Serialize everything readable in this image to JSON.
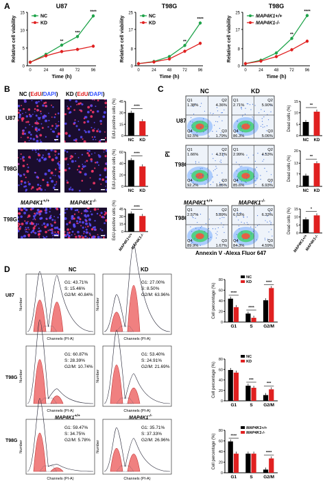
{
  "panels": {
    "A": {
      "letter": "A",
      "xlabel": "Time (h)",
      "ylabel": "Relative cell viability",
      "x_ticks": [
        "0",
        "24",
        "48",
        "72",
        "96"
      ],
      "y_ticks": [
        "0",
        "5",
        "10",
        "15"
      ],
      "charts": [
        {
          "title": "U87",
          "legend": [
            "NC",
            "KD"
          ],
          "sig": [
            "**",
            "***",
            "****"
          ]
        },
        {
          "title": "T98G",
          "legend": [
            "NC",
            "KD"
          ],
          "sig": [
            "**",
            "****"
          ]
        },
        {
          "title": "T98G",
          "legend": [
            "MAP4K1+/+",
            "MAP4K1-/-"
          ],
          "sig": [
            "**",
            "****"
          ]
        }
      ]
    },
    "B": {
      "letter": "B",
      "col_nc": "NC",
      "col_kd": "KD",
      "col_edu": "EdU",
      "col_dapi": "DAPI",
      "row_labels": [
        "U87",
        "T98G",
        "T98G"
      ],
      "mouse_labels": [
        "MAP4K1",
        "MAP4K1"
      ],
      "ylabel": "EdU-positive cells (%)",
      "bar_cats_1": [
        "NC",
        "KD"
      ],
      "bar_cats_3": [
        "MAP4K1+/+",
        "MAP4K1-/-"
      ],
      "sig": "****",
      "y_ticks": [
        "0",
        "20",
        "40"
      ]
    },
    "C": {
      "letter": "C",
      "col_nc": "NC",
      "col_kd": "KD",
      "row_labels": [
        "U87",
        "T98G",
        "T98G"
      ],
      "pi": "PI",
      "xaxis": "Annexin  V -Alexa Fluor 647",
      "ylabel": "Dead cells (%)",
      "sig": [
        "**",
        "**",
        "*"
      ],
      "quads": [
        [
          [
            "Q1",
            "1.38%",
            "Q2",
            "4.36%",
            "Q4",
            "92.5%",
            "Q3",
            "1.79%"
          ],
          [
            "Q1",
            "2.71%",
            "Q2",
            "5.90%",
            "Q4",
            "86.3%",
            "Q3",
            "5.06%"
          ]
        ],
        [
          [
            "Q1",
            "1.66%",
            "Q2",
            "4.31%",
            "Q4",
            "92.2%",
            "Q3",
            "1.85%"
          ],
          [
            "Q1",
            "2.99%",
            "Q2",
            "4.53%",
            "Q4",
            "85.6%",
            "Q3",
            "6.93%"
          ]
        ],
        [
          [
            "Q1",
            "2.57%",
            "Q2",
            "5.89%",
            "Q4",
            "89.9%",
            "Q3",
            "1.67%"
          ],
          [
            "Q1",
            "6.53%",
            "Q2",
            "6.33%",
            "Q4",
            "84.3%",
            "Q3",
            "4.59%"
          ]
        ]
      ],
      "bar_cats": [
        "NC",
        "KD"
      ]
    },
    "D": {
      "letter": "D",
      "col_nc": "NC",
      "col_kd": "KD",
      "row_labels": [
        "U87",
        "T98G",
        "T98G"
      ],
      "xaxis": "Channels (PI-A)",
      "yaxis": "Number",
      "ylabel": "Cell percentage (%)",
      "cats": [
        "G1",
        "S",
        "G2/M"
      ],
      "stats": [
        [
          [
            "G1: 43.71%",
            "S: 15.46%",
            "G2/M: 40.84%"
          ],
          [
            "G1: 27.00%",
            "S: 8.50%",
            "G2/M: 63.96%"
          ]
        ],
        [
          [
            "G1: 60.87%",
            "S: 28.39%",
            "G2/M: 10.74%"
          ],
          [
            "G1: 53.40%",
            "S: 24.91%",
            "G2/M: 21.69%"
          ]
        ],
        [
          [
            "G1: 59.47%",
            "S: 34.75%",
            "G2/M: 5.78%"
          ],
          [
            "G1: 35.71%",
            "S: 37.33%",
            "G2/M: 26.96%"
          ]
        ]
      ],
      "legend_1": [
        "NC",
        "KD"
      ],
      "legend_3": [
        "MAP4K1+/+",
        "MAP4K1-/-"
      ],
      "sig_1": [
        "****",
        "****",
        "****"
      ],
      "sig_2": [
        "***",
        "***"
      ],
      "sig_3": [
        "****",
        "****"
      ]
    }
  },
  "colors": {
    "nc": "#1fa34a",
    "kd": "#e02020",
    "bar_nc": "#000000",
    "bar_kd": "#e02020"
  },
  "chart_data": [
    {
      "type": "line",
      "title": "U87",
      "xlabel": "Time (h)",
      "ylabel": "Relative cell viability",
      "x": [
        0,
        24,
        48,
        72,
        96
      ],
      "ylim": [
        0,
        15
      ],
      "series": [
        {
          "name": "NC",
          "values": [
            1,
            3.2,
            5.8,
            8.2,
            14
          ]
        },
        {
          "name": "KD",
          "values": [
            1,
            2.8,
            4,
            4.6,
            5.5
          ]
        }
      ]
    },
    {
      "type": "line",
      "title": "T98G",
      "xlabel": "Time (h)",
      "ylabel": "Relative cell viability",
      "x": [
        0,
        24,
        48,
        72,
        96
      ],
      "ylim": [
        0,
        25
      ],
      "series": [
        {
          "name": "NC",
          "values": [
            1,
            2,
            4.3,
            9.5,
            20
          ]
        },
        {
          "name": "KD",
          "values": [
            1,
            1.8,
            3.2,
            6.8,
            10.5
          ]
        }
      ]
    },
    {
      "type": "line",
      "title": "T98G",
      "xlabel": "Time (h)",
      "ylabel": "Relative cell viability",
      "x": [
        0,
        24,
        48,
        72,
        96
      ],
      "ylim": [
        0,
        25
      ],
      "series": [
        {
          "name": "MAP4K1+/+",
          "values": [
            1,
            2.6,
            6,
            12.8,
            23.5
          ]
        },
        {
          "name": "MAP4K1-/-",
          "values": [
            1,
            2.2,
            4.3,
            7.5,
            11.5
          ]
        }
      ]
    },
    {
      "type": "bar",
      "ylabel": "EdU-positive cells (%)",
      "categories": [
        "NC",
        "KD"
      ],
      "values": [
        30,
        19
      ],
      "ylim": [
        0,
        45
      ]
    },
    {
      "type": "bar",
      "ylabel": "EdU-positive cells (%)",
      "categories": [
        "NC",
        "KD"
      ],
      "values": [
        46,
        35
      ],
      "ylim": [
        0,
        60
      ]
    },
    {
      "type": "bar",
      "ylabel": "EdU-positive cells (%)",
      "categories": [
        "MAP4K1+/+",
        "MAP4K1-/-"
      ],
      "values": [
        36,
        31
      ],
      "ylim": [
        0,
        45
      ]
    },
    {
      "type": "bar",
      "ylabel": "Dead cells (%)",
      "categories": [
        "NC",
        "KD"
      ],
      "values": [
        6,
        10.5
      ],
      "ylim": [
        0,
        15
      ]
    },
    {
      "type": "bar",
      "ylabel": "Dead cells (%)",
      "categories": [
        "NC",
        "KD"
      ],
      "values": [
        6,
        13
      ],
      "ylim": [
        0,
        20
      ]
    },
    {
      "type": "bar",
      "ylabel": "Dead cells (%)",
      "categories": [
        "MAP4K1+/+",
        "MAP4K1-/-"
      ],
      "values": [
        8.5,
        11
      ],
      "ylim": [
        0,
        15
      ]
    },
    {
      "type": "bar",
      "ylabel": "Cell percentage (%)",
      "categories": [
        "G1",
        "S",
        "G2/M"
      ],
      "ylim": [
        0,
        80
      ],
      "series": [
        {
          "name": "NC",
          "values": [
            44,
            16,
            41
          ]
        },
        {
          "name": "KD",
          "values": [
            28,
            8,
            64
          ]
        }
      ]
    },
    {
      "type": "bar",
      "ylabel": "Cell percentage (%)",
      "categories": [
        "G1",
        "S",
        "G2/M"
      ],
      "ylim": [
        0,
        80
      ],
      "series": [
        {
          "name": "NC",
          "values": [
            59,
            29,
            11
          ]
        },
        {
          "name": "KD",
          "values": [
            54,
            25,
            22
          ]
        }
      ]
    },
    {
      "type": "bar",
      "ylabel": "Cell percentage (%)",
      "categories": [
        "G1",
        "S",
        "G2/M"
      ],
      "ylim": [
        0,
        80
      ],
      "series": [
        {
          "name": "MAP4K1+/+",
          "values": [
            59,
            36,
            6
          ]
        },
        {
          "name": "MAP4K1-/-",
          "values": [
            36,
            36,
            27
          ]
        }
      ]
    }
  ]
}
